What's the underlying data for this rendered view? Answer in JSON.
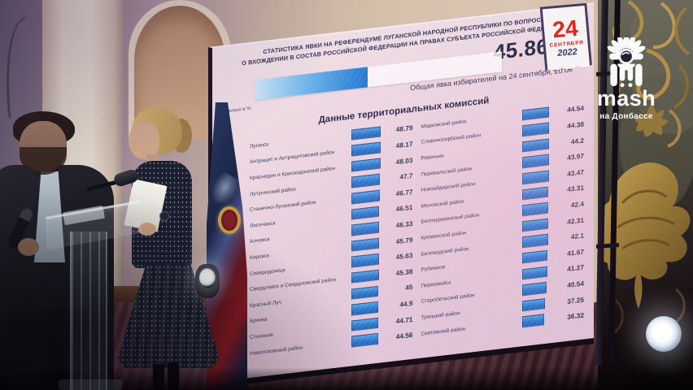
{
  "watermark": {
    "brand": "mash",
    "region": "на Донбассе"
  },
  "screen": {
    "title_line1": "СТАТИСТИКА ЯВКИ НА РЕФЕРЕНДУМЕ ЛУГАНСКОЙ НАРОДНОЙ РЕСПУБЛИКИ ПО ВОПРОСУ",
    "title_line2": "О ВХОЖДЕНИИ В СОСТАВ РОССИЙСКОЙ ФЕДЕРАЦИИ НА ПРАВАХ СУБЪЕКТА РОССИЙСКОЙ ФЕДЕРАЦИИ",
    "turnout_percent": "45.86%",
    "progress_fill_percent": 45.86,
    "turnout_caption": "Общая явка избирателей на 24 сентября, 20:00",
    "units_note": "Данные в %",
    "calendar": {
      "day": "24",
      "month": "СЕНТЯБРЯ",
      "year": "2022"
    }
  },
  "chart_data": {
    "type": "bar",
    "orientation": "horizontal",
    "title": "Данные территориальных комиссий",
    "value_units": "%",
    "value_range": [
      0,
      50
    ],
    "overall_turnout": {
      "label": "Общая явка избирателей на 24 сентября, 20:00",
      "value": 45.86
    },
    "columns": [
      {
        "rows": [
          {
            "label": "Луганск",
            "value": "48.79"
          },
          {
            "label": "Антрацит и Антрацитовский район",
            "value": "48.17"
          },
          {
            "label": "Краснодон и Краснодонский район",
            "value": "48.03"
          },
          {
            "label": "Лутугинский район",
            "value": "47.7"
          },
          {
            "label": "Станично-Луганский район",
            "value": "46.77"
          },
          {
            "label": "Лисичанск",
            "value": "46.51"
          },
          {
            "label": "Алчевск",
            "value": "46.33"
          },
          {
            "label": "Кировск",
            "value": "45.79"
          },
          {
            "label": "Северодонецк",
            "value": "45.63"
          },
          {
            "label": "Свердловск и Свердловский район",
            "value": "45.38"
          },
          {
            "label": "Красный Луч",
            "value": "45"
          },
          {
            "label": "Брянка",
            "value": "44.9"
          },
          {
            "label": "Стаханов",
            "value": "44.71"
          },
          {
            "label": "Новопсковский район",
            "value": "44.56"
          }
        ]
      },
      {
        "rows": [
          {
            "label": "Марковский район",
            "value": "44.54"
          },
          {
            "label": "Славяносербский район",
            "value": "44.38"
          },
          {
            "label": "Ровеньки",
            "value": "44.2"
          },
          {
            "label": "Перевальский район",
            "value": "43.97"
          },
          {
            "label": "Новоайдарский район",
            "value": "43.47"
          },
          {
            "label": "Меловской район",
            "value": "43.31"
          },
          {
            "label": "Белокуракинский район",
            "value": "42.4"
          },
          {
            "label": "Кременской район",
            "value": "42.31"
          },
          {
            "label": "Беловодский район",
            "value": "42.1"
          },
          {
            "label": "Рубежное",
            "value": "41.67"
          },
          {
            "label": "Первомайск",
            "value": "41.27"
          },
          {
            "label": "Старобельский район",
            "value": "40.54"
          },
          {
            "label": "Троицкий район",
            "value": "37.25"
          },
          {
            "label": "Сватовский район",
            "value": "36.32"
          }
        ]
      }
    ]
  },
  "colors": {
    "bar_blue": "#2f87da",
    "screen_background": "#eddae3",
    "calendar_red": "#e2251e",
    "text_navy": "#262c49",
    "ornament_gold": "#a8863f"
  }
}
